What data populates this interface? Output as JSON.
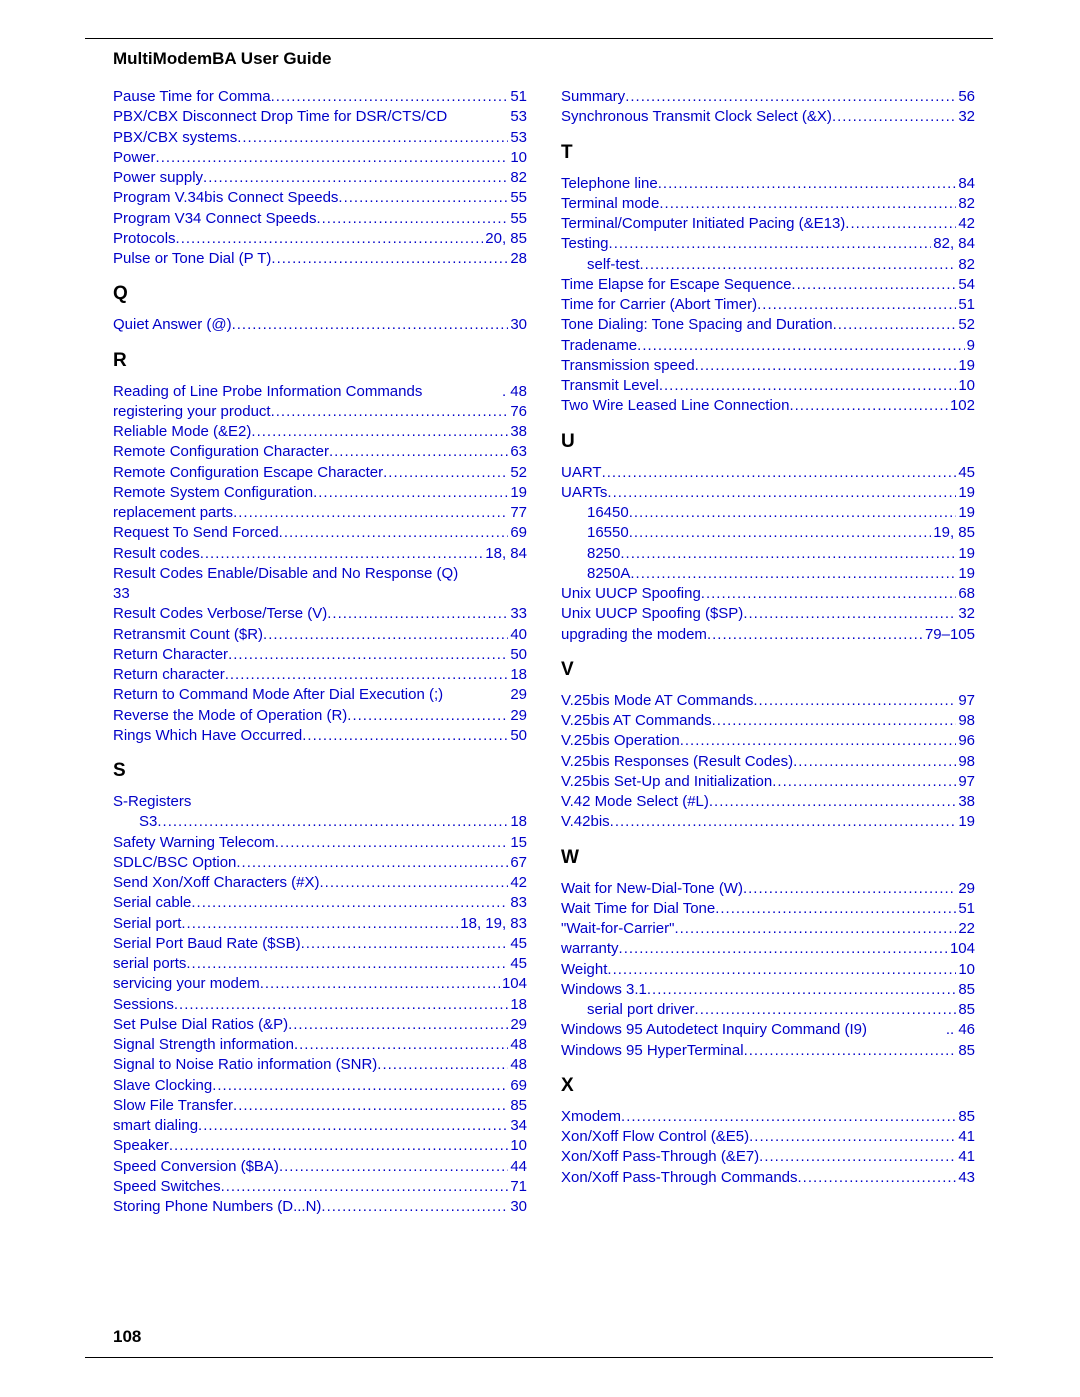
{
  "header": "MultiModemBA User Guide",
  "pageNumber": "108",
  "link_color": "#0000c8",
  "col1": [
    {
      "label": "Pause Time for Comma",
      "page": "51"
    },
    {
      "label": "PBX/CBX Disconnect Drop Time for DSR/CTS/CD",
      "page": "53",
      "noleader": true
    },
    {
      "label": "PBX/CBX systems",
      "page": "53"
    },
    {
      "label": "Power",
      "page": "10"
    },
    {
      "label": "Power supply",
      "page": "82"
    },
    {
      "label": "Program V.34bis Connect Speeds",
      "page": "55"
    },
    {
      "label": "Program V34 Connect Speeds",
      "page": "55"
    },
    {
      "label": "Protocols",
      "page": "20,  85"
    },
    {
      "label": "Pulse or Tone Dial (P  T)",
      "page": "28"
    },
    {
      "letter": "Q"
    },
    {
      "label": "Quiet Answer (@)",
      "page": "30"
    },
    {
      "letter": "R"
    },
    {
      "label": "Reading of Line Probe Information Commands",
      "page": ". 48",
      "noleader": true
    },
    {
      "label": "registering your product",
      "page": "76"
    },
    {
      "label": "Reliable Mode (&E2)",
      "page": "38"
    },
    {
      "label": "Remote Configuration Character",
      "page": "63"
    },
    {
      "label": "Remote Configuration Escape Character",
      "page": "52"
    },
    {
      "label": "Remote System Configuration",
      "page": "19"
    },
    {
      "label": "replacement parts",
      "page": "77"
    },
    {
      "label": "Request To Send Forced",
      "page": "69"
    },
    {
      "label": "Result codes",
      "page": "18,  84"
    },
    {
      "label": "Result Codes Enable/Disable and No Response (Q)",
      "page": "",
      "noleader": true
    },
    {
      "label": "33",
      "page": "",
      "noleader": true
    },
    {
      "label": "Result Codes Verbose/Terse (V)",
      "page": "33"
    },
    {
      "label": "Retransmit Count ($R)",
      "page": "40"
    },
    {
      "label": "Return Character",
      "page": "50"
    },
    {
      "label": "Return character",
      "page": "18"
    },
    {
      "label": "Return to Command Mode After Dial Execution (;)",
      "page": "29",
      "noleader": true
    },
    {
      "label": "Reverse the Mode of Operation (R)",
      "page": "29"
    },
    {
      "label": "Rings Which Have Occurred",
      "page": "50"
    },
    {
      "letter": "S"
    },
    {
      "label": "S-Registers",
      "page": "",
      "noleader": true
    },
    {
      "label": "S3",
      "page": "18",
      "indent": true
    },
    {
      "label": "Safety Warning Telecom",
      "page": "15"
    },
    {
      "label": "SDLC/BSC Option",
      "page": "67"
    },
    {
      "label": "Send Xon/Xoff Characters (#X)",
      "page": "42"
    },
    {
      "label": "Serial cable",
      "page": "83"
    },
    {
      "label": "Serial port",
      "page": "18,  19,  83"
    },
    {
      "label": "Serial Port Baud Rate ($SB)",
      "page": "45"
    },
    {
      "label": "serial ports",
      "page": "45"
    },
    {
      "label": "servicing your modem",
      "page": "104"
    },
    {
      "label": "Sessions",
      "page": "18"
    },
    {
      "label": "Set Pulse Dial Ratios (&P)",
      "page": "29"
    },
    {
      "label": "Signal Strength information",
      "page": "48"
    },
    {
      "label": "Signal to Noise Ratio information (SNR)",
      "page": "48"
    },
    {
      "label": "Slave Clocking",
      "page": "69"
    },
    {
      "label": "Slow File Transfer",
      "page": "85"
    },
    {
      "label": "smart dialing",
      "page": "34"
    },
    {
      "label": "Speaker",
      "page": "10"
    },
    {
      "label": "Speed Conversion ($BA)",
      "page": "44"
    },
    {
      "label": "Speed Switches",
      "page": "71"
    },
    {
      "label": "Storing Phone Numbers (D...N)",
      "page": "30"
    }
  ],
  "col2": [
    {
      "label": "Summary",
      "page": "56"
    },
    {
      "label": "Synchronous Transmit Clock Select (&X)",
      "page": "32"
    },
    {
      "letter": "T"
    },
    {
      "label": "Telephone line",
      "page": "84"
    },
    {
      "label": "Terminal mode",
      "page": "82"
    },
    {
      "label": "Terminal/Computer Initiated Pacing (&E13)",
      "page": "42"
    },
    {
      "label": "Testing",
      "page": "82,  84"
    },
    {
      "label": "self-test",
      "page": "82",
      "indent": true
    },
    {
      "label": "Time Elapse for Escape Sequence",
      "page": "54"
    },
    {
      "label": "Time for Carrier (Abort Timer)",
      "page": "51"
    },
    {
      "label": "Tone Dialing: Tone Spacing and Duration",
      "page": "52"
    },
    {
      "label": "Tradename",
      "page": "9"
    },
    {
      "label": "Transmission speed",
      "page": "19"
    },
    {
      "label": "Transmit  Level",
      "page": "10"
    },
    {
      "label": "Two Wire Leased Line Connection",
      "page": "102"
    },
    {
      "letter": "U"
    },
    {
      "label": "UART",
      "page": "45"
    },
    {
      "label": "UARTs",
      "page": "19"
    },
    {
      "label": "16450",
      "page": "19",
      "indent": true
    },
    {
      "label": "16550",
      "page": "19,  85",
      "indent": true
    },
    {
      "label": "8250",
      "page": "19",
      "indent": true
    },
    {
      "label": "8250A",
      "page": "19",
      "indent": true
    },
    {
      "label": "Unix UUCP Spoofing",
      "page": "68"
    },
    {
      "label": "Unix UUCP Spoofing ($SP)",
      "page": "32"
    },
    {
      "label": "upgrading the modem",
      "page": "79–105"
    },
    {
      "letter": "V"
    },
    {
      "label": "V.25bis  Mode AT Commands",
      "page": "97"
    },
    {
      "label": "V.25bis AT Commands",
      "page": "98"
    },
    {
      "label": "V.25bis Operation",
      "page": "96"
    },
    {
      "label": "V.25bis Responses (Result Codes)",
      "page": "98"
    },
    {
      "label": "V.25bis Set-Up and Initialization",
      "page": "97"
    },
    {
      "label": "V.42 Mode Select (#L)",
      "page": "38"
    },
    {
      "label": "V.42bis",
      "page": "19"
    },
    {
      "letter": "W"
    },
    {
      "label": "Wait for New-Dial-Tone (W)",
      "page": "29"
    },
    {
      "label": "Wait Time for Dial Tone",
      "page": "51"
    },
    {
      "label": "\"Wait-for-Carrier\"",
      "page": "22"
    },
    {
      "label": "warranty",
      "page": "104"
    },
    {
      "label": "Weight",
      "page": "10"
    },
    {
      "label": "Windows 3.1",
      "page": "85"
    },
    {
      "label": "serial port driver",
      "page": "85",
      "indent": true
    },
    {
      "label": "Windows 95 Autodetect Inquiry Command (I9)",
      "page": ".. 46",
      "noleader": true
    },
    {
      "label": "Windows 95 HyperTerminal",
      "page": "85"
    },
    {
      "letter": "X"
    },
    {
      "label": "Xmodem",
      "page": "85"
    },
    {
      "label": "Xon/Xoff Flow Control (&E5)",
      "page": "41"
    },
    {
      "label": "Xon/Xoff Pass-Through (&E7)",
      "page": "41"
    },
    {
      "label": "Xon/Xoff Pass-Through Commands",
      "page": "43"
    }
  ]
}
